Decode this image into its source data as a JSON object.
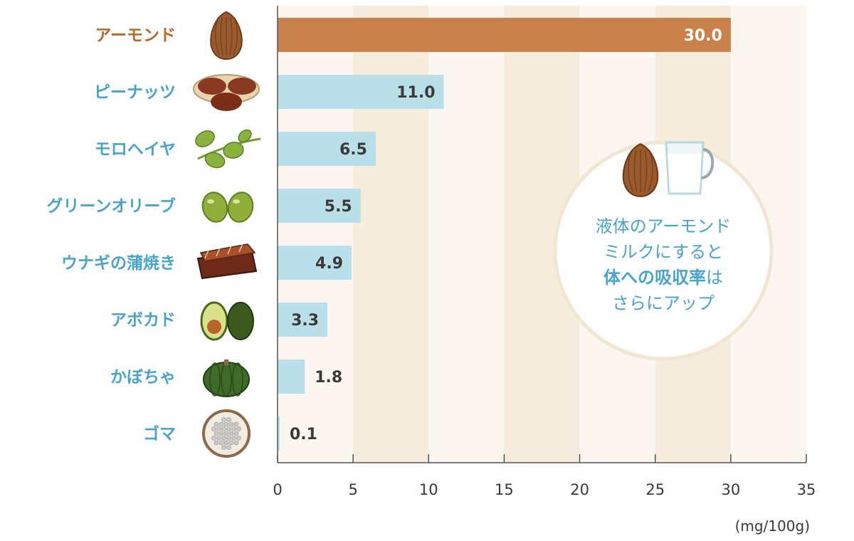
{
  "chart_data": {
    "type": "bar",
    "orientation": "horizontal",
    "categories": [
      "アーモンド",
      "ピーナッツ",
      "モロヘイヤ",
      "グリーンオリーブ",
      "ウナギの蒲焼き",
      "アボカド",
      "かぼちゃ",
      "ゴマ"
    ],
    "values": [
      30.0,
      11.0,
      6.5,
      5.5,
      4.9,
      3.3,
      1.8,
      0.1
    ],
    "value_labels": [
      "30.0",
      "11.0",
      "6.5",
      "5.5",
      "4.9",
      "3.3",
      "1.8",
      "0.1"
    ],
    "icons": [
      "almond-icon",
      "peanut-icon",
      "molokhia-icon",
      "olive-icon",
      "eel-kabayaki-icon",
      "avocado-icon",
      "pumpkin-icon",
      "sesame-icon"
    ],
    "xlim": [
      0,
      35
    ],
    "x_ticks": [
      0,
      5,
      10,
      15,
      20,
      25,
      30,
      35
    ],
    "unit": "(mg/100g)",
    "highlight_index": 0,
    "grid": "alternating-bands",
    "colors": {
      "highlight_bar": "#c9814c",
      "highlight_label": "#b86a2c",
      "bar": "#b9dfe9",
      "label": "#4aa3c8",
      "band_a": "#fbf6ef",
      "band_b": "#f6ecde",
      "axis": "#555555"
    }
  },
  "callout": {
    "lines": [
      [
        {
          "text": "液体のアーモンド",
          "bold": false
        }
      ],
      [
        {
          "text": "ミルクにすると",
          "bold": false
        }
      ],
      [
        {
          "text": "体への吸収率",
          "bold": true
        },
        {
          "text": "は",
          "bold": false
        }
      ],
      [
        {
          "text": "さらにアップ",
          "bold": false
        }
      ]
    ],
    "icons": [
      "almond-icon",
      "milk-glass-icon"
    ],
    "colors": {
      "border": "#f0e6d2",
      "text": "#4aa3c8"
    }
  }
}
